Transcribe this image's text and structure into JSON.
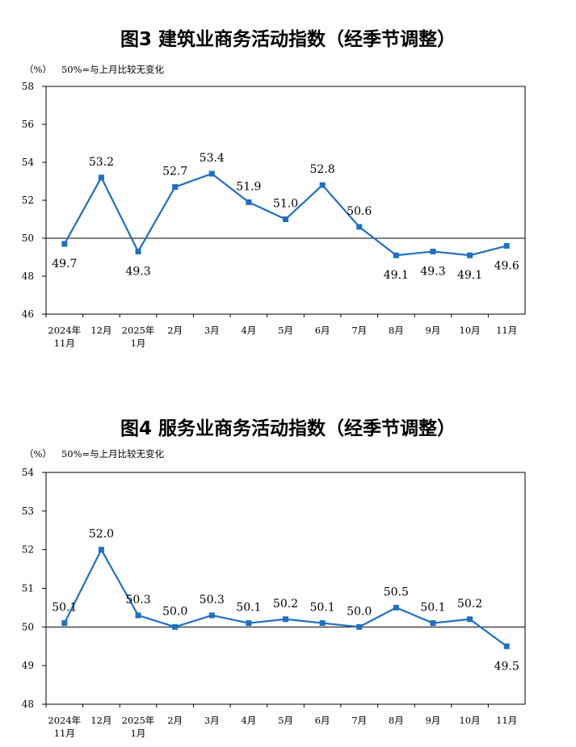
{
  "charts": [
    {
      "title": "图3  建筑业商务活动指数（经季节调整）",
      "unit_label": "（%）",
      "reference_note": "50%=与上月比较无变化"
    },
    {
      "title": "图4  服务业商务活动指数（经季节调整）",
      "unit_label": "（%）",
      "reference_note": "50%=与上月比较无变化"
    }
  ],
  "chart_data": [
    {
      "type": "line",
      "title": "图3  建筑业商务活动指数（经季节调整）",
      "ylabel": "（%）",
      "annotation": "50%=与上月比较无变化",
      "categories": [
        [
          "2024年",
          "11月"
        ],
        [
          "12月"
        ],
        [
          "2025年",
          "1月"
        ],
        [
          "2月"
        ],
        [
          "3月"
        ],
        [
          "4月"
        ],
        [
          "5月"
        ],
        [
          "6月"
        ],
        [
          "7月"
        ],
        [
          "8月"
        ],
        [
          "9月"
        ],
        [
          "10月"
        ],
        [
          "11月"
        ]
      ],
      "values": [
        49.7,
        53.2,
        49.3,
        52.7,
        53.4,
        51.9,
        51.0,
        52.8,
        50.6,
        49.1,
        49.3,
        49.1,
        49.6
      ],
      "data_labels": [
        "49.7",
        "53.2",
        "49.3",
        "52.7",
        "53.4",
        "51.9",
        "51.0",
        "52.8",
        "50.6",
        "49.1",
        "49.3",
        "49.1",
        "49.6"
      ],
      "ylim": [
        46,
        58
      ],
      "yticks": [
        46,
        48,
        50,
        52,
        54,
        56,
        58
      ],
      "reference_line": 50,
      "grid": false,
      "line_color": "#1f6fc5",
      "marker": "square"
    },
    {
      "type": "line",
      "title": "图4  服务业商务活动指数（经季节调整）",
      "ylabel": "（%）",
      "annotation": "50%=与上月比较无变化",
      "categories": [
        [
          "2024年",
          "11月"
        ],
        [
          "12月"
        ],
        [
          "2025年",
          "1月"
        ],
        [
          "2月"
        ],
        [
          "3月"
        ],
        [
          "4月"
        ],
        [
          "5月"
        ],
        [
          "6月"
        ],
        [
          "7月"
        ],
        [
          "8月"
        ],
        [
          "9月"
        ],
        [
          "10月"
        ],
        [
          "11月"
        ]
      ],
      "values": [
        50.1,
        52.0,
        50.3,
        50.0,
        50.3,
        50.1,
        50.2,
        50.1,
        50.0,
        50.5,
        50.1,
        50.2,
        49.5
      ],
      "data_labels": [
        "50.1",
        "52.0",
        "50.3",
        "50.0",
        "50.3",
        "50.1",
        "50.2",
        "50.1",
        "50.0",
        "50.5",
        "50.1",
        "50.2",
        "49.5"
      ],
      "ylim": [
        48,
        54
      ],
      "yticks": [
        48,
        49,
        50,
        51,
        52,
        53,
        54
      ],
      "reference_line": 50,
      "grid": false,
      "line_color": "#1f6fc5",
      "marker": "square"
    }
  ]
}
